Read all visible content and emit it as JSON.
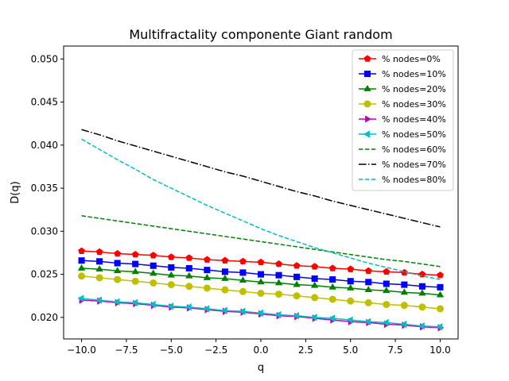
{
  "chart_data": {
    "type": "line",
    "title": "Multifractality componente Giant random",
    "xlabel": "q",
    "ylabel": "D(q)",
    "xlim": [
      -11,
      11
    ],
    "ylim": [
      0.0175,
      0.0515
    ],
    "xticks": [
      -10,
      -7.5,
      -5,
      -2.5,
      0,
      2.5,
      5,
      7.5,
      10
    ],
    "xtick_labels": [
      "−10.0",
      "−7.5",
      "−5.0",
      "−2.5",
      "0.0",
      "2.5",
      "5.0",
      "7.5",
      "10.0"
    ],
    "yticks": [
      0.02,
      0.025,
      0.03,
      0.035,
      0.04,
      0.045,
      0.05
    ],
    "ytick_labels": [
      "0.020",
      "0.025",
      "0.030",
      "0.035",
      "0.040",
      "0.045",
      "0.050"
    ],
    "legend_position": "top-right",
    "x": [
      -10,
      -9,
      -8,
      -7,
      -6,
      -5,
      -4,
      -3,
      -2,
      -1,
      0,
      1,
      2,
      3,
      4,
      5,
      6,
      7,
      8,
      9,
      10
    ],
    "series": [
      {
        "name": "% nodes=0%",
        "color": "#ff0000",
        "marker": "pentagon",
        "dash": "solid",
        "values": [
          0.0277,
          0.0276,
          0.0274,
          0.0273,
          0.0272,
          0.027,
          0.0269,
          0.0267,
          0.0266,
          0.0265,
          0.0264,
          0.0262,
          0.026,
          0.0259,
          0.0257,
          0.0256,
          0.0254,
          0.0253,
          0.0252,
          0.025,
          0.0249
        ]
      },
      {
        "name": "% nodes=10%",
        "color": "#0000ff",
        "marker": "square",
        "dash": "solid",
        "values": [
          0.0266,
          0.0265,
          0.0263,
          0.0262,
          0.026,
          0.0258,
          0.0257,
          0.0255,
          0.0253,
          0.0252,
          0.025,
          0.0249,
          0.0247,
          0.0245,
          0.0244,
          0.0242,
          0.0241,
          0.0239,
          0.0238,
          0.0236,
          0.0235
        ]
      },
      {
        "name": "% nodes=20%",
        "color": "#008000",
        "marker": "triangle-up",
        "dash": "solid",
        "values": [
          0.0257,
          0.0256,
          0.0254,
          0.0253,
          0.0251,
          0.0249,
          0.0248,
          0.0246,
          0.0245,
          0.0243,
          0.0241,
          0.024,
          0.0238,
          0.0237,
          0.0235,
          0.0234,
          0.0232,
          0.0231,
          0.0229,
          0.0228,
          0.0226
        ]
      },
      {
        "name": "% nodes=30%",
        "color": "#bfbf00",
        "marker": "circle",
        "dash": "solid",
        "values": [
          0.0248,
          0.0246,
          0.0244,
          0.0242,
          0.024,
          0.0238,
          0.0236,
          0.0234,
          0.0232,
          0.023,
          0.0228,
          0.0227,
          0.0225,
          0.0223,
          0.0221,
          0.0219,
          0.0217,
          0.0215,
          0.0214,
          0.0212,
          0.021
        ]
      },
      {
        "name": "% nodes=40%",
        "color": "#bf00bf",
        "marker": "triangle-right",
        "dash": "solid",
        "values": [
          0.022,
          0.0219,
          0.0217,
          0.0216,
          0.0214,
          0.0212,
          0.0211,
          0.0209,
          0.0207,
          0.0206,
          0.0204,
          0.0202,
          0.0201,
          0.0199,
          0.0197,
          0.0195,
          0.0194,
          0.0192,
          0.0191,
          0.0189,
          0.0188
        ]
      },
      {
        "name": "% nodes=50%",
        "color": "#00bfbf",
        "marker": "triangle-left",
        "dash": "solid",
        "values": [
          0.0222,
          0.022,
          0.0218,
          0.0217,
          0.0215,
          0.0213,
          0.0212,
          0.021,
          0.0208,
          0.0207,
          0.0205,
          0.0203,
          0.0202,
          0.02,
          0.0199,
          0.0197,
          0.0195,
          0.0194,
          0.0192,
          0.019,
          0.0189
        ]
      },
      {
        "name": "% nodes=60%",
        "color": "#008000",
        "marker": "none",
        "dash": "dashed",
        "values": [
          0.0318,
          0.0315,
          0.0312,
          0.0309,
          0.0306,
          0.0303,
          0.03,
          0.0297,
          0.0294,
          0.0291,
          0.0288,
          0.0285,
          0.0282,
          0.0279,
          0.0276,
          0.0273,
          0.027,
          0.0267,
          0.0265,
          0.0262,
          0.0259
        ]
      },
      {
        "name": "% nodes=70%",
        "color": "#000000",
        "marker": "none",
        "dash": "dashdot",
        "values": [
          0.0418,
          0.0412,
          0.0405,
          0.0399,
          0.0393,
          0.0387,
          0.0381,
          0.0375,
          0.0369,
          0.0364,
          0.0358,
          0.0352,
          0.0346,
          0.0341,
          0.0335,
          0.033,
          0.0325,
          0.032,
          0.0315,
          0.031,
          0.0305
        ]
      },
      {
        "name": "% nodes=80%",
        "color": "#00bfbf",
        "marker": "none",
        "dash": "dashed",
        "values": [
          0.0407,
          0.0395,
          0.0383,
          0.0372,
          0.036,
          0.035,
          0.034,
          0.033,
          0.0321,
          0.0312,
          0.0303,
          0.0295,
          0.0288,
          0.0281,
          0.0275,
          0.0269,
          0.0263,
          0.0258,
          0.0253,
          0.0248,
          0.0244
        ]
      }
    ]
  }
}
